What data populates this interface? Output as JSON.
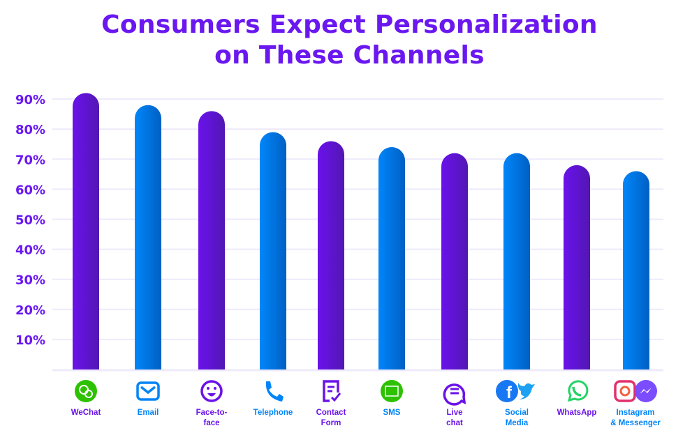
{
  "chart_data": {
    "type": "bar",
    "title": "Consumers Expect Personalization on These Channels",
    "title_lines": [
      "Consumers Expect Personalization",
      "on These Channels"
    ],
    "categories": [
      "WeChat",
      "Email",
      "Face-to-face",
      "Telephone",
      "Contact Form",
      "SMS",
      "Live chat",
      "Social Media",
      "WhatsApp",
      "Instagram & Messenger"
    ],
    "category_label_lines": [
      [
        "WeChat"
      ],
      [
        "Email"
      ],
      [
        "Face-to-",
        "face"
      ],
      [
        "Telephone"
      ],
      [
        "Contact",
        "Form"
      ],
      [
        "SMS"
      ],
      [
        "Live",
        "chat"
      ],
      [
        "Social",
        "Media"
      ],
      [
        "WhatsApp"
      ],
      [
        "Instagram",
        "& Messenger"
      ]
    ],
    "icons": [
      "wechat-icon",
      "email-icon",
      "smiley-face-icon",
      "telephone-icon",
      "contact-form-icon",
      "sms-icon",
      "live-chat-icon",
      "facebook-twitter-icon",
      "whatsapp-icon",
      "instagram-messenger-icon"
    ],
    "values": [
      92,
      88,
      86,
      79,
      76,
      74,
      72,
      72,
      68,
      66
    ],
    "bar_colors": [
      "purple",
      "blue",
      "purple",
      "blue",
      "purple",
      "blue",
      "purple",
      "blue",
      "purple",
      "blue"
    ],
    "yticks": [
      "10%",
      "20%",
      "30%",
      "40%",
      "50%",
      "60%",
      "70%",
      "80%",
      "90%"
    ],
    "ylim": [
      0,
      100
    ],
    "xlabel": "",
    "ylabel": "",
    "grid": true,
    "colors": {
      "purple": "#6a12e8",
      "purple_dark": "#5317b5",
      "blue": "#0084f8",
      "blue_dark": "#0062c6",
      "title": "#6a17f0",
      "grid": "#eee9fb"
    }
  }
}
